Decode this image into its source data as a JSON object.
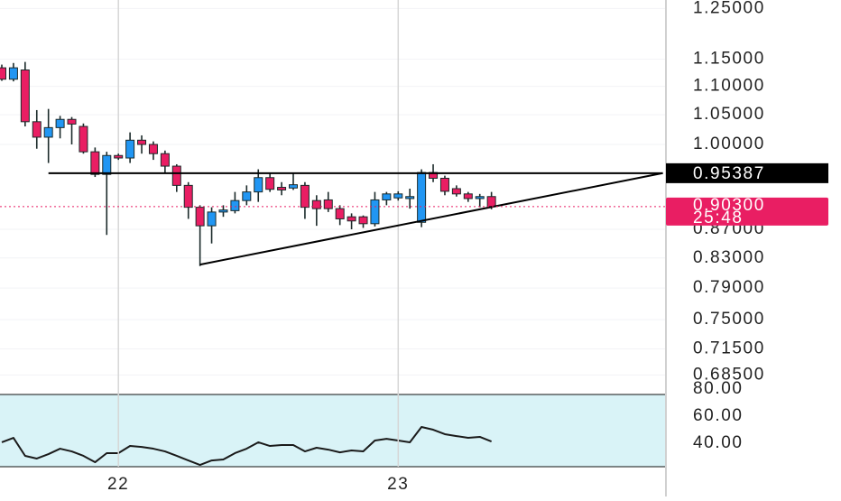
{
  "chart_data": [
    {
      "type": "candlestick",
      "categories": [
        null,
        null,
        null,
        null,
        null,
        null,
        null,
        null,
        null,
        null,
        "22",
        null,
        null,
        null,
        null,
        null,
        null,
        null,
        null,
        null,
        null,
        null,
        null,
        null,
        null,
        null,
        null,
        null,
        null,
        null,
        null,
        null,
        null,
        null,
        "23",
        null,
        null,
        null,
        null,
        null,
        null,
        null,
        null
      ],
      "open": [
        1.134,
        1.113,
        1.13,
        1.038,
        1.012,
        1.028,
        1.042,
        1.03,
        0.988,
        0.952,
        0.982,
        0.978,
        1.007,
        1.0,
        0.985,
        0.965,
        0.935,
        0.902,
        0.875,
        0.895,
        0.897,
        0.912,
        0.925,
        0.947,
        0.932,
        0.931,
        0.935,
        0.912,
        0.913,
        0.9,
        0.888,
        0.888,
        0.878,
        0.913,
        0.916,
        0.915,
        0.88,
        0.955,
        0.946,
        0.93,
        0.922,
        0.915,
        0.918
      ],
      "high": [
        1.14,
        1.143,
        1.145,
        1.058,
        1.06,
        1.048,
        1.046,
        1.035,
        0.995,
        0.988,
        0.985,
        1.02,
        1.015,
        1.005,
        0.99,
        0.968,
        0.94,
        0.905,
        0.902,
        0.905,
        0.925,
        0.935,
        0.96,
        0.955,
        0.94,
        0.955,
        0.94,
        0.92,
        0.925,
        0.905,
        0.893,
        0.89,
        0.925,
        0.925,
        0.926,
        0.93,
        0.96,
        0.968,
        0.95,
        0.935,
        0.925,
        0.922,
        0.925
      ],
      "low": [
        1.11,
        1.109,
        1.03,
        0.993,
        0.97,
        1.01,
        1.0,
        0.985,
        0.948,
        0.862,
        0.975,
        0.97,
        0.985,
        0.975,
        0.955,
        0.925,
        0.885,
        0.819,
        0.85,
        0.888,
        0.893,
        0.905,
        0.91,
        0.925,
        0.92,
        0.928,
        0.885,
        0.875,
        0.895,
        0.876,
        0.87,
        0.872,
        0.874,
        0.905,
        0.912,
        0.9,
        0.873,
        0.94,
        0.92,
        0.918,
        0.91,
        0.902,
        0.899
      ],
      "close": [
        1.113,
        1.134,
        1.038,
        1.012,
        1.028,
        1.042,
        1.034,
        0.988,
        0.952,
        0.982,
        0.978,
        1.007,
        1.0,
        0.985,
        0.965,
        0.935,
        0.902,
        0.875,
        0.895,
        0.898,
        0.912,
        0.925,
        0.947,
        0.929,
        0.928,
        0.936,
        0.902,
        0.9,
        0.9,
        0.885,
        0.882,
        0.878,
        0.913,
        0.922,
        0.922,
        0.918,
        0.955,
        0.946,
        0.926,
        0.922,
        0.915,
        0.918,
        0.903
      ],
      "up_color": "#2196f3",
      "down_color": "#e91e63",
      "log_scale": true,
      "ylim": [
        0.6753,
        1.2675
      ],
      "yticks": [
        {
          "value": 1.25,
          "label": "1.25000"
        },
        {
          "value": 1.15,
          "label": "1.15000"
        },
        {
          "value": 1.1,
          "label": "1.10000"
        },
        {
          "value": 1.05,
          "label": "1.05000"
        },
        {
          "value": 1.0,
          "label": "1.00000"
        },
        {
          "value": 0.87,
          "label": "0.87000"
        },
        {
          "value": 0.83,
          "label": "0.83000"
        },
        {
          "value": 0.79,
          "label": "0.79000"
        },
        {
          "value": 0.75,
          "label": "0.75000"
        },
        {
          "value": 0.715,
          "label": "0.71500"
        },
        {
          "value": 0.685,
          "label": "0.68500"
        }
      ],
      "resistance": {
        "x": [
          4,
          56.7
        ],
        "y": 0.95387
      },
      "trendline": {
        "x": [
          17,
          56.7
        ],
        "y": [
          0.821,
          0.954
        ]
      },
      "last_price": {
        "value": 0.903,
        "label": "0.90300",
        "countdown": "25:48"
      }
    },
    {
      "type": "line",
      "values": [
        40.7,
        44,
        30.7,
        28.7,
        32,
        36,
        34,
        30.7,
        26,
        32.7,
        32.7,
        38,
        37.3,
        36,
        34,
        30.7,
        27.3,
        24,
        27.3,
        28,
        32.7,
        36,
        40.7,
        38,
        38.7,
        38.7,
        34,
        36.7,
        35.3,
        33.3,
        34.7,
        34,
        42,
        43.3,
        42,
        40.7,
        52,
        50,
        46.7,
        45.3,
        44,
        44.7,
        41.3
      ],
      "color": "#1a1a1a",
      "ylim": [
        22.7,
        76
      ],
      "yticks": [
        {
          "value": 40,
          "label": "40.00"
        },
        {
          "value": 60,
          "label": "60.00"
        },
        {
          "value": 80,
          "label": "80.00"
        }
      ]
    }
  ]
}
